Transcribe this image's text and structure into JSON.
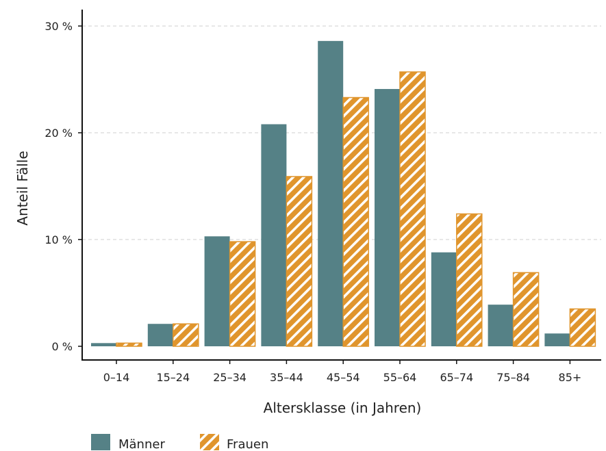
{
  "chart_data": {
    "type": "bar",
    "xlabel": "Altersklasse (in Jahren)",
    "ylabel": "Anteil Fälle",
    "categories": [
      "0–14",
      "15–24",
      "25–34",
      "35–44",
      "45–54",
      "55–64",
      "65–74",
      "75–84",
      "85+"
    ],
    "series": [
      {
        "name": "Männer",
        "values": [
          0.3,
          2.1,
          10.3,
          20.8,
          28.6,
          24.1,
          8.8,
          3.9,
          1.2
        ]
      },
      {
        "name": "Frauen",
        "values": [
          0.3,
          2.1,
          9.8,
          15.9,
          23.3,
          25.7,
          12.4,
          6.9,
          3.5
        ]
      }
    ],
    "ylim": [
      0,
      30
    ],
    "yticks": [
      0,
      10,
      20,
      30
    ],
    "ytick_labels": [
      "0 %",
      "10 %",
      "20 %",
      "30 %"
    ],
    "grid": "horizontal dashed",
    "legend": "bottom-left",
    "colors": {
      "Männer": "#558186",
      "Frauen": "#e0952d",
      "hatch": "#ffffff"
    }
  }
}
